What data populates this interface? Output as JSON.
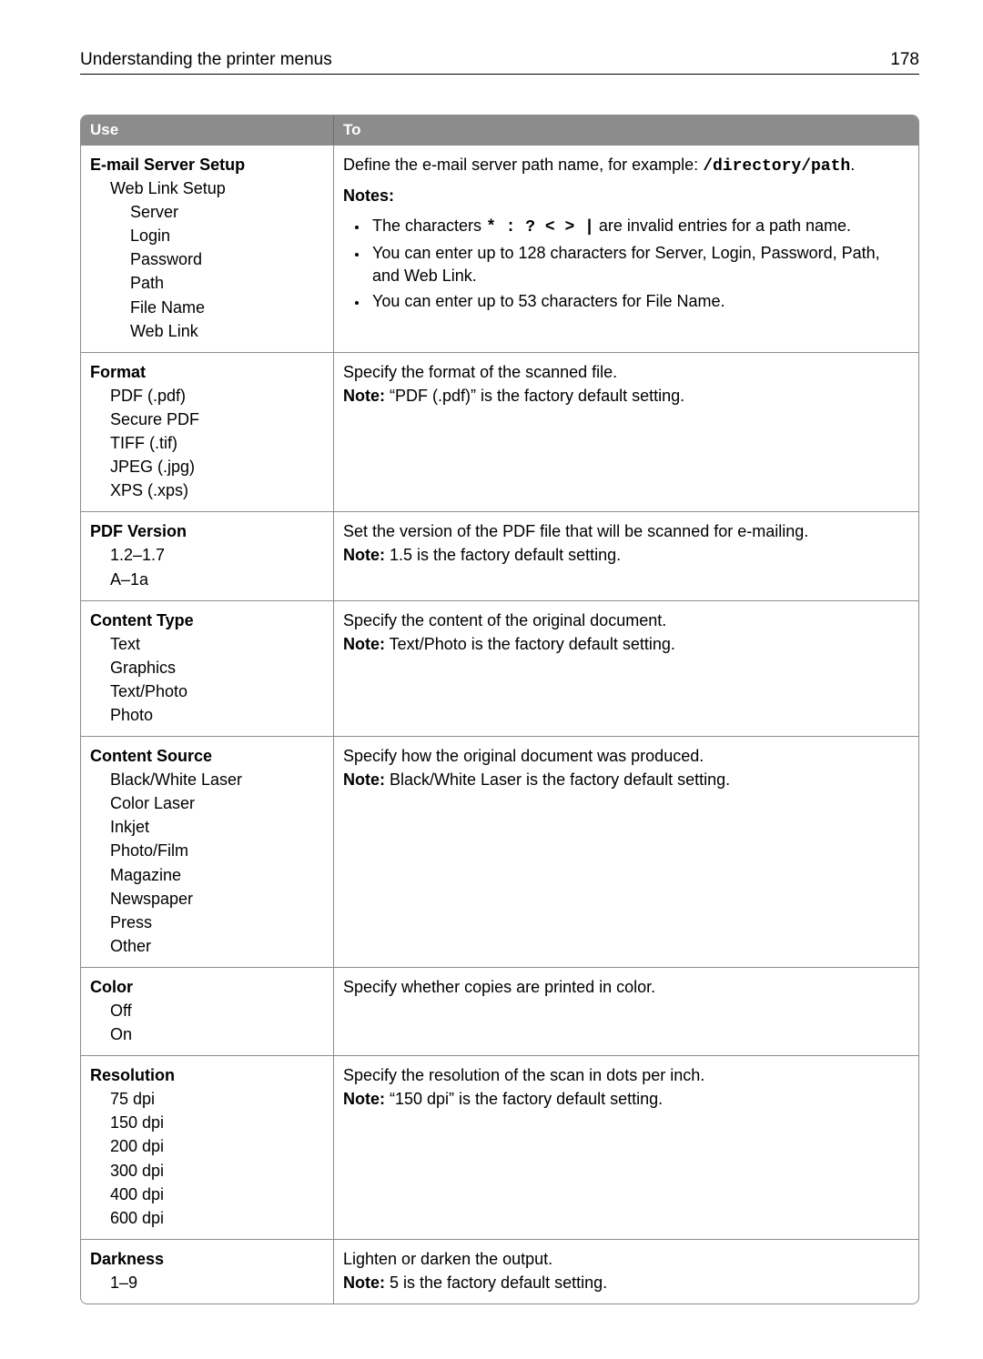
{
  "header": {
    "title": "Understanding the printer menus",
    "page": "178"
  },
  "columns": {
    "use": "Use",
    "to": "To"
  },
  "rows": [
    {
      "use": {
        "title": "E-mail Server Setup",
        "tree": [
          {
            "text": "Web Link Setup",
            "lvl": 1
          },
          {
            "text": "Server",
            "lvl": 2
          },
          {
            "text": "Login",
            "lvl": 2
          },
          {
            "text": "Password",
            "lvl": 2
          },
          {
            "text": "Path",
            "lvl": 2
          },
          {
            "text": "File Name",
            "lvl": 2
          },
          {
            "text": "Web Link",
            "lvl": 2
          }
        ]
      },
      "to": {
        "lead_pre": "Define the e-mail server path name, for example: ",
        "lead_mono": "/directory/path",
        "lead_post": ".",
        "notes_label": "Notes:",
        "bullets": [
          {
            "pre": "The characters ",
            "mono": "* : ? < > |",
            "post": " are invalid entries for a path name."
          },
          {
            "pre": "You can enter up to 128 characters for Server, Login, Password, Path, and Web Link.",
            "mono": "",
            "post": ""
          },
          {
            "pre": "You can enter up to 53 characters for File Name.",
            "mono": "",
            "post": ""
          }
        ]
      }
    },
    {
      "use": {
        "title": "Format",
        "tree": [
          {
            "text": "PDF (.pdf)",
            "lvl": 1
          },
          {
            "text": "Secure PDF",
            "lvl": 1
          },
          {
            "text": "TIFF (.tif)",
            "lvl": 1
          },
          {
            "text": "JPEG (.jpg)",
            "lvl": 1
          },
          {
            "text": "XPS (.xps)",
            "lvl": 1
          }
        ]
      },
      "to": {
        "line": "Specify the format of the scanned file.",
        "note_label": "Note:",
        "note_text": " “PDF (.pdf)” is the factory default setting."
      }
    },
    {
      "use": {
        "title": "PDF Version",
        "tree": [
          {
            "text": "1.2–1.7",
            "lvl": 1
          },
          {
            "text": "A–1a",
            "lvl": 1
          }
        ]
      },
      "to": {
        "line": "Set the version of the PDF file that will be scanned for e-mailing.",
        "note_label": "Note:",
        "note_text": " 1.5 is the factory default setting."
      }
    },
    {
      "use": {
        "title": "Content Type",
        "tree": [
          {
            "text": "Text",
            "lvl": 1
          },
          {
            "text": "Graphics",
            "lvl": 1
          },
          {
            "text": "Text/Photo",
            "lvl": 1
          },
          {
            "text": "Photo",
            "lvl": 1
          }
        ]
      },
      "to": {
        "line": "Specify the content of the original document.",
        "note_label": "Note:",
        "note_text": " Text/Photo is the factory default setting."
      }
    },
    {
      "use": {
        "title": "Content Source",
        "tree": [
          {
            "text": "Black/White Laser",
            "lvl": 1
          },
          {
            "text": "Color Laser",
            "lvl": 1
          },
          {
            "text": "Inkjet",
            "lvl": 1
          },
          {
            "text": "Photo/Film",
            "lvl": 1
          },
          {
            "text": "Magazine",
            "lvl": 1
          },
          {
            "text": "Newspaper",
            "lvl": 1
          },
          {
            "text": "Press",
            "lvl": 1
          },
          {
            "text": "Other",
            "lvl": 1
          }
        ]
      },
      "to": {
        "line": "Specify how the original document was produced.",
        "note_label": "Note:",
        "note_text": " Black/White Laser is the factory default setting."
      }
    },
    {
      "use": {
        "title": "Color",
        "tree": [
          {
            "text": "Off",
            "lvl": 1
          },
          {
            "text": "On",
            "lvl": 1
          }
        ]
      },
      "to": {
        "line": "Specify whether copies are printed in color."
      }
    },
    {
      "use": {
        "title": "Resolution",
        "tree": [
          {
            "text": "75 dpi",
            "lvl": 1
          },
          {
            "text": "150 dpi",
            "lvl": 1
          },
          {
            "text": "200 dpi",
            "lvl": 1
          },
          {
            "text": "300 dpi",
            "lvl": 1
          },
          {
            "text": "400 dpi",
            "lvl": 1
          },
          {
            "text": "600 dpi",
            "lvl": 1
          }
        ]
      },
      "to": {
        "line": "Specify the resolution of the scan in dots per inch.",
        "note_label": "Note:",
        "note_text": " “150 dpi” is the factory default setting."
      }
    },
    {
      "use": {
        "title": "Darkness",
        "tree": [
          {
            "text": "1–9",
            "lvl": 1
          }
        ]
      },
      "to": {
        "line": "Lighten or darken the output.",
        "note_label": "Note:",
        "note_text": " 5 is the factory default setting."
      }
    }
  ]
}
